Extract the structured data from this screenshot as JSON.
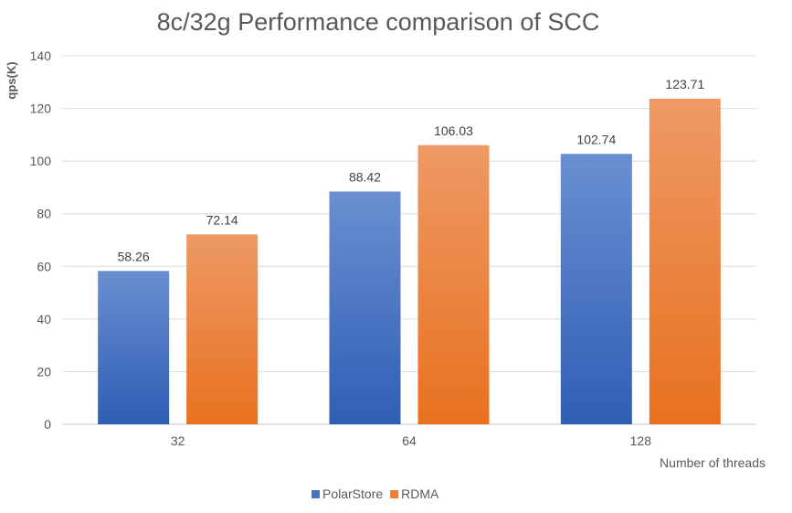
{
  "chart_data": {
    "type": "bar",
    "title": "8c/32g Performance comparison of SCC",
    "xlabel": "Number of threads",
    "ylabel": "qps(K)",
    "categories": [
      "32",
      "64",
      "128"
    ],
    "series": [
      {
        "name": "PolarStore",
        "values": [
          58.26,
          88.42,
          102.74
        ],
        "color": "#4472C4"
      },
      {
        "name": "RDMA",
        "values": [
          72.14,
          106.03,
          123.71
        ],
        "color": "#ED7D31"
      }
    ],
    "ylim": [
      0,
      140
    ],
    "yticks": [
      0,
      20,
      40,
      60,
      80,
      100,
      120,
      140
    ],
    "grid": true,
    "legend": "bottom",
    "data_labels": true
  }
}
